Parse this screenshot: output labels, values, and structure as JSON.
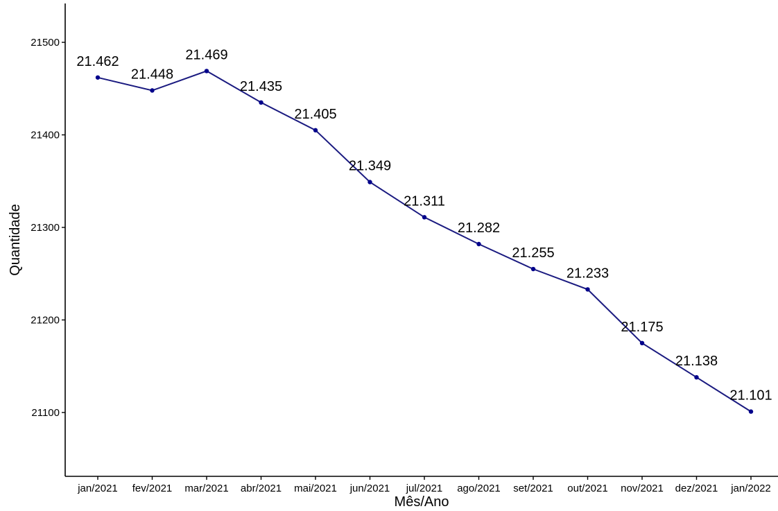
{
  "chart_data": {
    "type": "line",
    "title": "",
    "xlabel": "Mês/Ano",
    "ylabel": "Quantidade",
    "categories": [
      "jan/2021",
      "fev/2021",
      "mar/2021",
      "abr/2021",
      "mai/2021",
      "jun/2021",
      "jul/2021",
      "ago/2021",
      "set/2021",
      "out/2021",
      "nov/2021",
      "dez/2021",
      "jan/2022"
    ],
    "series": [
      {
        "values": [
          21462,
          21448,
          21469,
          21435,
          21405,
          21349,
          21311,
          21282,
          21255,
          21233,
          21175,
          21138,
          21101
        ],
        "labels": [
          "21.462",
          "21.448",
          "21.469",
          "21.435",
          "21.405",
          "21.349",
          "21.311",
          "21.282",
          "21.255",
          "21.233",
          "21.175",
          "21.138",
          "21.101"
        ]
      }
    ],
    "yticks": [
      21100,
      21200,
      21300,
      21400,
      21500
    ],
    "ylim": [
      21031,
      21542
    ],
    "grid": false,
    "line_color": "#1a1a80",
    "point_color": "#00008b"
  }
}
